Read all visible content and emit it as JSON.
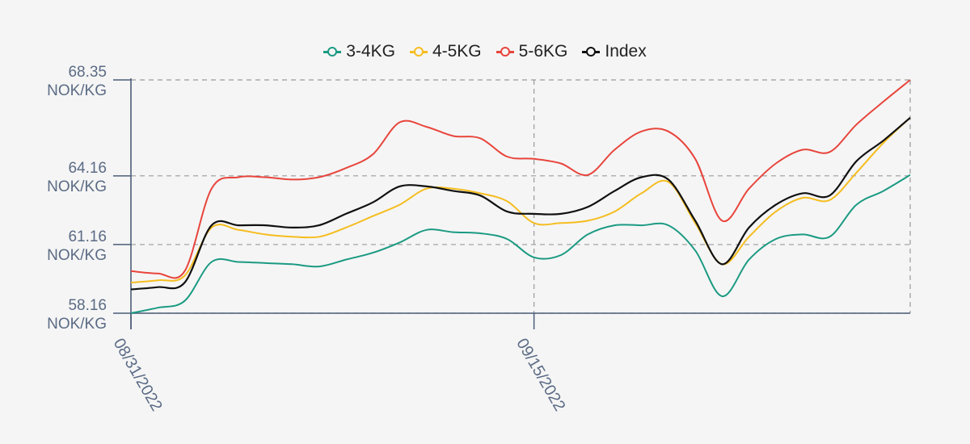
{
  "chart_data": {
    "type": "line",
    "y_unit": "NOK/KG",
    "y_ticks": [
      58.16,
      61.16,
      64.16,
      68.35
    ],
    "y_tick_labels": [
      "58.16",
      "61.16",
      "64.16",
      "68.35"
    ],
    "ylim": [
      58.16,
      68.35
    ],
    "x_tick_labels": [
      "08/31/2022",
      "09/15/2022"
    ],
    "x_tick_index": [
      0,
      15
    ],
    "grid": true,
    "legend_position": "top-center",
    "x": [
      "08/31/2022",
      "09/01/2022",
      "09/02/2022",
      "09/03/2022",
      "09/04/2022",
      "09/05/2022",
      "09/06/2022",
      "09/07/2022",
      "09/08/2022",
      "09/09/2022",
      "09/10/2022",
      "09/11/2022",
      "09/12/2022",
      "09/13/2022",
      "09/14/2022",
      "09/15/2022",
      "09/16/2022",
      "09/17/2022",
      "09/18/2022",
      "09/19/2022",
      "09/20/2022",
      "09/21/2022",
      "09/22/2022",
      "09/23/2022",
      "09/24/2022",
      "09/25/2022",
      "09/26/2022",
      "09/27/2022",
      "09/28/2022",
      "09/29/2022"
    ],
    "series": [
      {
        "name": "3-4KG",
        "color": "#1b9a82",
        "values": [
          58.16,
          58.4,
          58.7,
          60.4,
          60.4,
          60.35,
          60.3,
          60.2,
          60.5,
          60.8,
          61.25,
          61.8,
          61.7,
          61.65,
          61.4,
          60.6,
          60.7,
          61.6,
          62.0,
          62.0,
          62.0,
          60.9,
          58.9,
          60.5,
          61.4,
          61.6,
          61.5,
          62.9,
          63.5,
          64.2
        ]
      },
      {
        "name": "4-5KG",
        "color": "#f5bd1f",
        "values": [
          59.5,
          59.6,
          59.8,
          61.9,
          61.8,
          61.6,
          61.5,
          61.5,
          61.9,
          62.4,
          62.9,
          63.6,
          63.6,
          63.4,
          63.05,
          62.1,
          62.1,
          62.2,
          62.6,
          63.4,
          63.9,
          62.1,
          60.3,
          61.5,
          62.6,
          63.2,
          63.1,
          64.3,
          65.6,
          66.7
        ]
      },
      {
        "name": "5-6KG",
        "color": "#e8453c",
        "values": [
          60.0,
          59.9,
          60.0,
          63.6,
          64.1,
          64.1,
          64.0,
          64.1,
          64.5,
          65.1,
          66.5,
          66.3,
          65.9,
          65.8,
          65.0,
          64.9,
          64.7,
          64.2,
          65.3,
          66.1,
          66.1,
          64.9,
          62.2,
          63.6,
          64.7,
          65.3,
          65.2,
          66.4,
          67.4,
          68.35
        ]
      },
      {
        "name": "Index",
        "color": "#111111",
        "values": [
          59.2,
          59.3,
          59.5,
          62.0,
          62.0,
          62.0,
          61.9,
          62.0,
          62.5,
          63.0,
          63.7,
          63.7,
          63.5,
          63.3,
          62.6,
          62.5,
          62.5,
          62.8,
          63.5,
          64.1,
          64.0,
          62.2,
          60.3,
          61.9,
          62.9,
          63.4,
          63.3,
          64.8,
          65.7,
          66.7
        ]
      }
    ]
  }
}
